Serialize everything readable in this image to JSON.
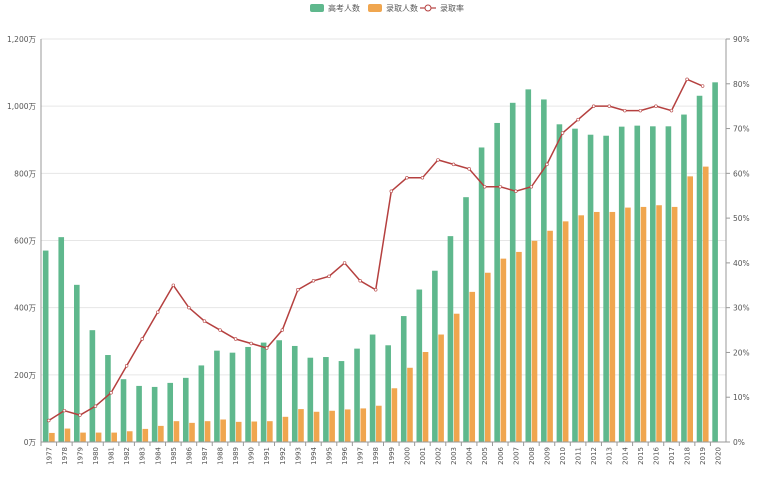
{
  "chart_data": {
    "type": "bar+line",
    "title": "",
    "legend_position": "top-center",
    "grid": true,
    "categories": [
      "1977",
      "1978",
      "1979",
      "1980",
      "1981",
      "1982",
      "1983",
      "1984",
      "1985",
      "1986",
      "1987",
      "1988",
      "1989",
      "1990",
      "1991",
      "1992",
      "1993",
      "1994",
      "1995",
      "1996",
      "1997",
      "1998",
      "1999",
      "2000",
      "2001",
      "2002",
      "2003",
      "2004",
      "2005",
      "2006",
      "2007",
      "2008",
      "2009",
      "2010",
      "2011",
      "2012",
      "2013",
      "2014",
      "2015",
      "2016",
      "2017",
      "2018",
      "2019",
      "2020"
    ],
    "y_left": {
      "min": 0,
      "max": 1200,
      "ticks": [
        "0万",
        "200万",
        "400万",
        "600万",
        "800万",
        "1,000万",
        "1,200万"
      ]
    },
    "y_right": {
      "min": 0,
      "max": 90,
      "ticks": [
        "0%",
        "10%",
        "20%",
        "30%",
        "40%",
        "50%",
        "60%",
        "70%",
        "80%",
        "90%"
      ]
    },
    "series": [
      {
        "name": "高考人数",
        "type": "bar",
        "axis": "left",
        "color": "#5fb88d",
        "values": [
          570,
          610,
          468,
          333,
          259,
          187,
          167,
          164,
          176,
          191,
          228,
          272,
          266,
          283,
          296,
          303,
          286,
          251,
          253,
          241,
          278,
          320,
          288,
          375,
          454,
          510,
          613,
          729,
          877,
          950,
          1010,
          1050,
          1020,
          946,
          933,
          915,
          912,
          939,
          942,
          940,
          940,
          975,
          1031,
          1071
        ]
      },
      {
        "name": "录取人数",
        "type": "bar",
        "axis": "left",
        "color": "#f0a64f",
        "values": [
          27,
          40,
          28,
          28,
          28,
          32,
          39,
          48,
          62,
          57,
          62,
          67,
          60,
          61,
          62,
          75,
          98,
          90,
          93,
          97,
          100,
          108,
          160,
          221,
          268,
          320,
          382,
          447,
          504,
          546,
          566,
          599,
          629,
          657,
          675,
          685,
          685,
          698,
          700,
          705,
          700,
          791,
          820,
          null
        ]
      },
      {
        "name": "录取率",
        "type": "line",
        "axis": "right",
        "color": "#b5403f",
        "values": [
          4.8,
          7,
          6,
          8,
          11,
          17,
          23,
          29,
          35,
          30,
          27,
          25,
          23,
          22,
          21,
          25,
          34,
          36,
          37,
          40,
          36,
          34,
          56,
          59,
          59,
          63,
          62,
          61,
          57,
          57,
          56,
          57,
          62,
          69,
          72,
          75,
          75,
          74,
          74,
          75,
          74,
          81,
          79.5,
          null
        ]
      }
    ]
  }
}
